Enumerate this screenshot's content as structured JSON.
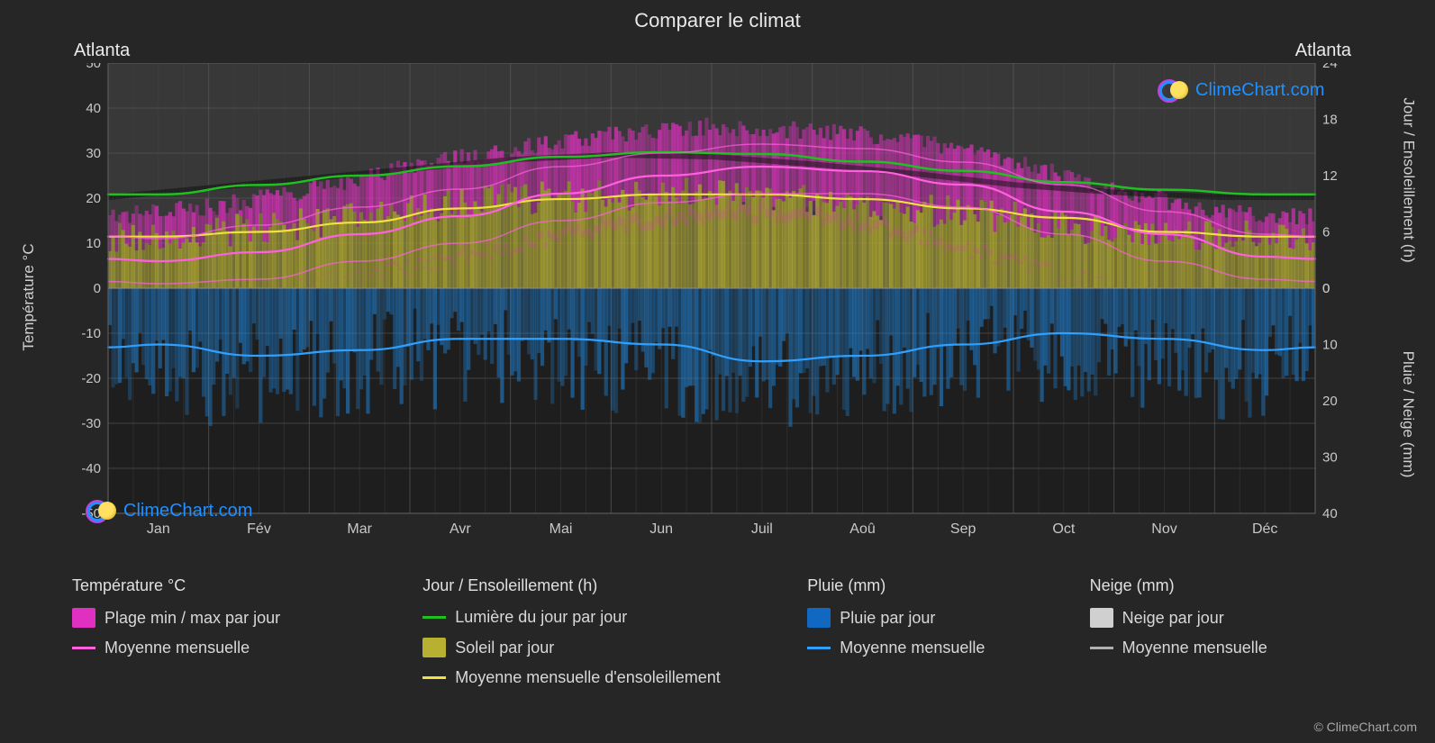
{
  "title": "Comparer le climat",
  "city_left": "Atlanta",
  "city_right": "Atlanta",
  "copyright": "© ClimeChart.com",
  "logo_text": "ClimeChart.com",
  "axis_left": {
    "label": "Température °C",
    "min": -50,
    "max": 50,
    "step": 10
  },
  "axis_right_top": {
    "label": "Jour / Ensoleillement (h)",
    "min": 0,
    "max": 24,
    "step": 6
  },
  "axis_right_bot": {
    "label": "Pluie / Neige (mm)",
    "min": 0,
    "max": 40,
    "step": 10
  },
  "months": [
    "Jan",
    "Fév",
    "Mar",
    "Avr",
    "Mai",
    "Jun",
    "Juil",
    "Aoû",
    "Sep",
    "Oct",
    "Nov",
    "Déc"
  ],
  "chart": {
    "type": "climate-chart",
    "background": "#262626",
    "plot_bg_top": "#383838",
    "plot_bg_bot": "#1e1e1e",
    "grid_color": "#5a5a5a",
    "grid_minor": "#454545",
    "colors": {
      "temp_fill": "#e030c0",
      "temp_line": "#ff60e0",
      "daylight_line": "#20c020",
      "sun_fill": "#b8b030",
      "sun_line": "#f0e040",
      "rain_fill": "#1068c0",
      "rain_bars": "#2080d0",
      "rain_line": "#30a0ff",
      "snow_fill": "#d0d0d0",
      "snow_line": "#b0b0b0"
    },
    "series": {
      "temp_min": [
        1,
        2,
        6,
        10,
        15,
        19,
        21,
        21,
        18,
        12,
        6,
        2
      ],
      "temp_max": [
        11,
        14,
        18,
        22,
        27,
        30,
        32,
        31,
        28,
        23,
        17,
        12
      ],
      "temp_mean": [
        6,
        8,
        12,
        16,
        21,
        25,
        27,
        26,
        23,
        17,
        12,
        7
      ],
      "daylight": [
        10,
        11,
        12,
        13,
        14,
        14.5,
        14.3,
        13.5,
        12.5,
        11.3,
        10.5,
        10
      ],
      "sunshine": [
        5.5,
        6,
        7,
        8.5,
        9.5,
        10,
        10,
        9.5,
        8.5,
        7.5,
        6,
        5.5
      ],
      "rain_mm": [
        10,
        12,
        11,
        9,
        9,
        10,
        13,
        12,
        10,
        8,
        9,
        11
      ],
      "temp_scatter_max": [
        16,
        18,
        22,
        27,
        31,
        34,
        36,
        35,
        33,
        28,
        22,
        17
      ],
      "temp_scatter_min": [
        -3,
        -2,
        1,
        5,
        10,
        15,
        18,
        18,
        13,
        6,
        0,
        -3
      ]
    }
  },
  "legend": {
    "cols": [
      {
        "heading": "Température °C",
        "items": [
          {
            "type": "swatch",
            "color": "#e030c0",
            "label": "Plage min / max par jour"
          },
          {
            "type": "line",
            "color": "#ff60e0",
            "label": "Moyenne mensuelle"
          }
        ]
      },
      {
        "heading": "Jour / Ensoleillement (h)",
        "items": [
          {
            "type": "line",
            "color": "#20c020",
            "label": "Lumière du jour par jour"
          },
          {
            "type": "swatch",
            "color": "#b8b030",
            "label": "Soleil par jour"
          },
          {
            "type": "line",
            "color": "#f0e040",
            "label": "Moyenne mensuelle d'ensoleillement"
          }
        ]
      },
      {
        "heading": "Pluie (mm)",
        "items": [
          {
            "type": "swatch",
            "color": "#1068c0",
            "label": "Pluie par jour"
          },
          {
            "type": "line",
            "color": "#30a0ff",
            "label": "Moyenne mensuelle"
          }
        ]
      },
      {
        "heading": "Neige (mm)",
        "items": [
          {
            "type": "swatch",
            "color": "#d0d0d0",
            "label": "Neige par jour"
          },
          {
            "type": "line",
            "color": "#b0b0b0",
            "label": "Moyenne mensuelle"
          }
        ]
      }
    ]
  }
}
